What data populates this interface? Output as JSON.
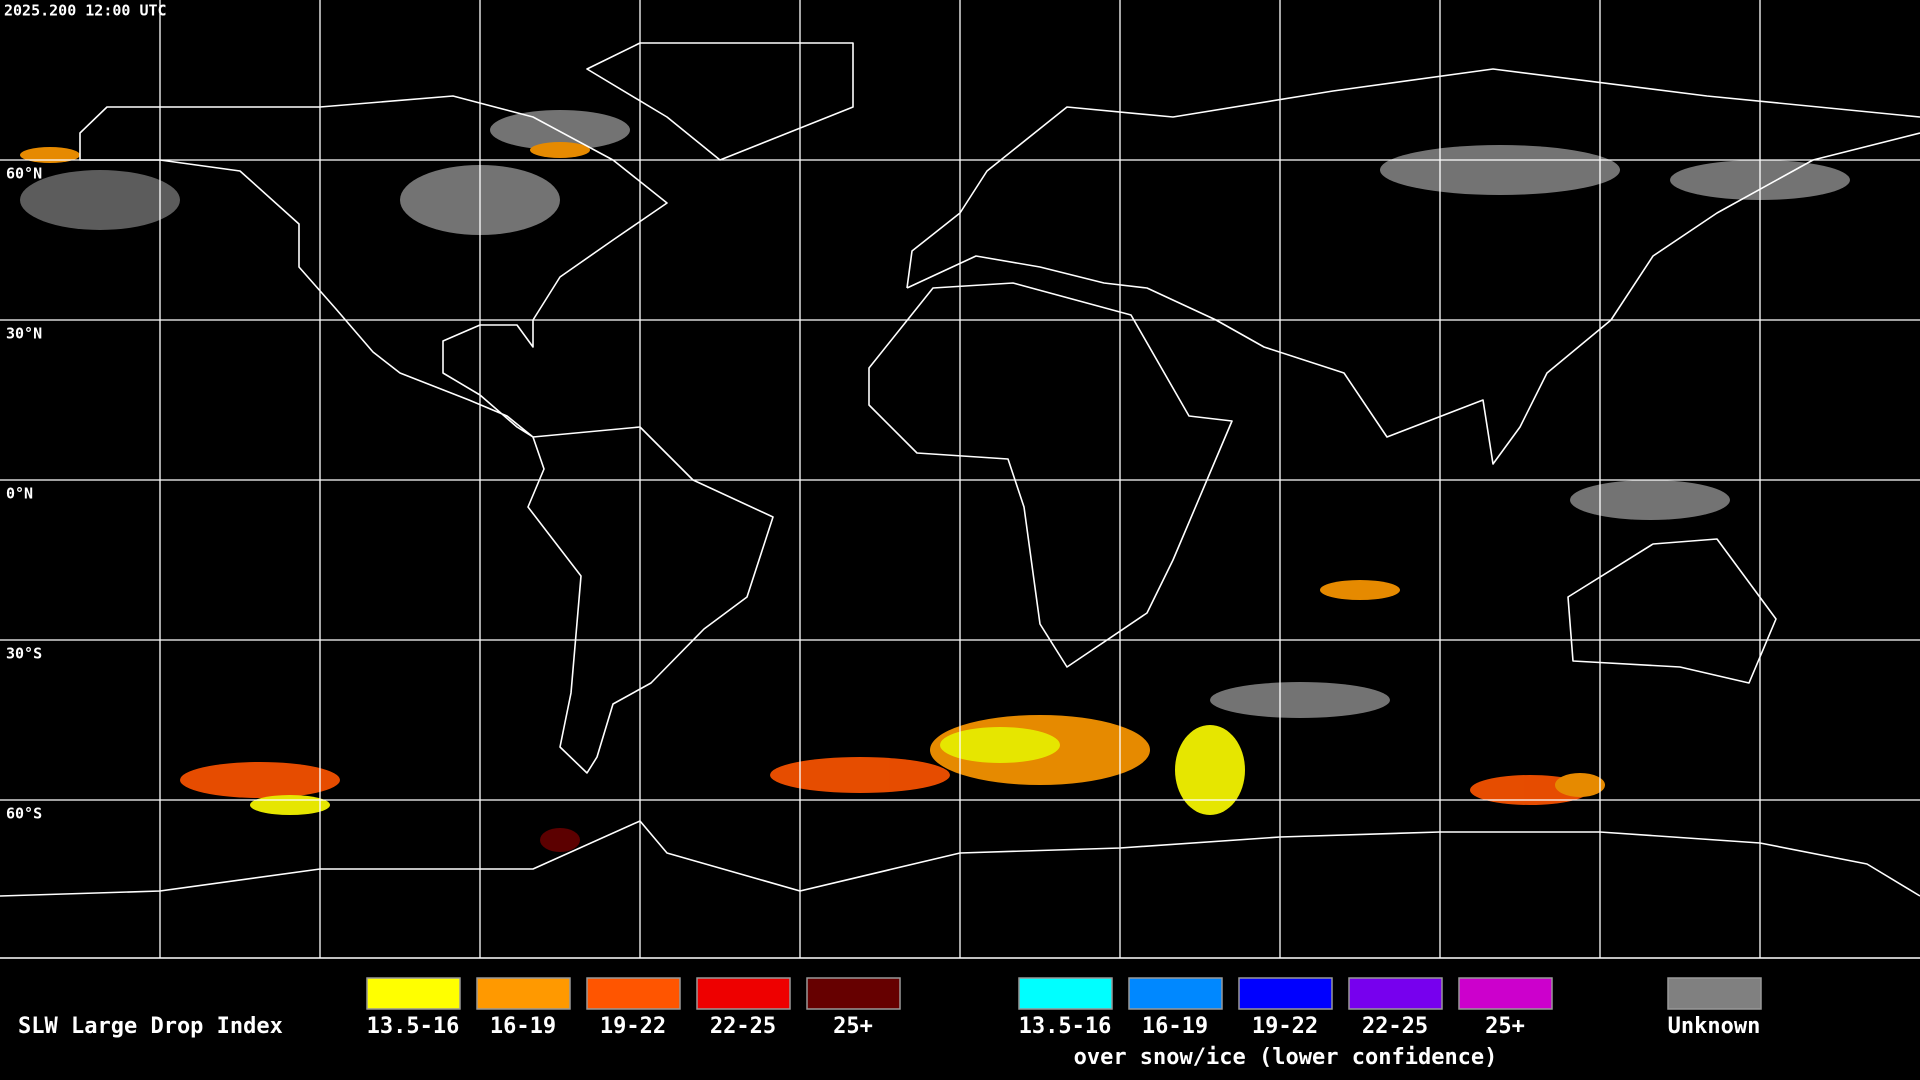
{
  "timestamp": "2025.200 12:00 UTC",
  "map": {
    "latitude_labels": [
      "60°N",
      "30°N",
      "0°N",
      "30°S",
      "60°S"
    ]
  },
  "legend": {
    "title": "SLW Large Drop Index",
    "groups": [
      {
        "items": [
          {
            "label": "13.5-16",
            "color": "#ffff00"
          },
          {
            "label": "16-19",
            "color": "#ff9900"
          },
          {
            "label": "19-22",
            "color": "#ff5500"
          },
          {
            "label": "22-25",
            "color": "#ee0000"
          },
          {
            "label": "25+",
            "color": "#660000"
          }
        ]
      },
      {
        "items": [
          {
            "label": "13.5-16",
            "color": "#00ffff"
          },
          {
            "label": "16-19",
            "color": "#0088ff"
          },
          {
            "label": "19-22",
            "color": "#0000ff"
          },
          {
            "label": "22-25",
            "color": "#7700ee"
          },
          {
            "label": "25+",
            "color": "#cc00cc"
          }
        ],
        "caption": "over snow/ice (lower confidence)"
      },
      {
        "items": [
          {
            "label": "Unknown",
            "color": "#808080"
          }
        ]
      }
    ]
  }
}
